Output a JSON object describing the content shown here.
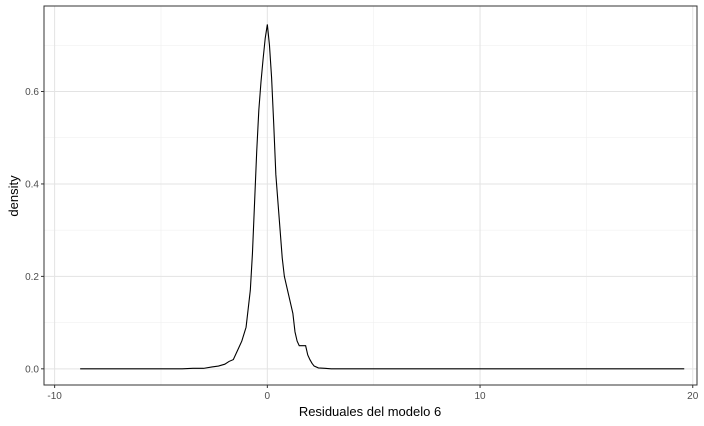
{
  "chart_data": {
    "type": "line",
    "title": "",
    "xlabel": "Residuales del modelo 6",
    "ylabel": "density",
    "xlim": [
      -10.5,
      20.2
    ],
    "ylim": [
      -0.035,
      0.785
    ],
    "x_ticks": [
      -10,
      0,
      10,
      20
    ],
    "x_tick_labels": [
      "-10",
      "0",
      "10",
      "20"
    ],
    "x_minor_ticks": [
      -5,
      5,
      15
    ],
    "y_ticks": [
      0.0,
      0.2,
      0.4,
      0.6
    ],
    "y_tick_labels": [
      "0.0",
      "0.2",
      "0.4",
      "0.6"
    ],
    "y_minor_ticks": [
      0.1,
      0.3,
      0.5,
      0.7
    ],
    "grid": true,
    "legend": "none",
    "series": [
      {
        "color": "#000000",
        "x": [
          -8.8,
          -6.0,
          -4.0,
          -3.5,
          -3.0,
          -2.6,
          -2.3,
          -2.0,
          -1.8,
          -1.6,
          -1.4,
          -1.2,
          -1.0,
          -0.9,
          -0.8,
          -0.7,
          -0.6,
          -0.5,
          -0.4,
          -0.3,
          -0.2,
          -0.1,
          0.0,
          0.1,
          0.2,
          0.3,
          0.4,
          0.5,
          0.6,
          0.7,
          0.8,
          0.9,
          1.0,
          1.1,
          1.2,
          1.3,
          1.4,
          1.5,
          1.6,
          1.7,
          1.8,
          1.9,
          2.0,
          2.1,
          2.2,
          2.4,
          2.7,
          3.0,
          5.0,
          10.0,
          15.0,
          19.6
        ],
        "y": [
          0.0,
          0.0,
          0.0,
          0.001,
          0.001,
          0.004,
          0.006,
          0.01,
          0.016,
          0.02,
          0.04,
          0.06,
          0.09,
          0.13,
          0.17,
          0.25,
          0.36,
          0.47,
          0.56,
          0.62,
          0.67,
          0.715,
          0.745,
          0.7,
          0.63,
          0.53,
          0.42,
          0.36,
          0.3,
          0.24,
          0.2,
          0.18,
          0.16,
          0.14,
          0.12,
          0.08,
          0.06,
          0.05,
          0.05,
          0.05,
          0.05,
          0.03,
          0.02,
          0.012,
          0.006,
          0.002,
          0.001,
          0.0,
          0.0,
          0.0,
          0.0,
          0.0
        ]
      }
    ]
  }
}
